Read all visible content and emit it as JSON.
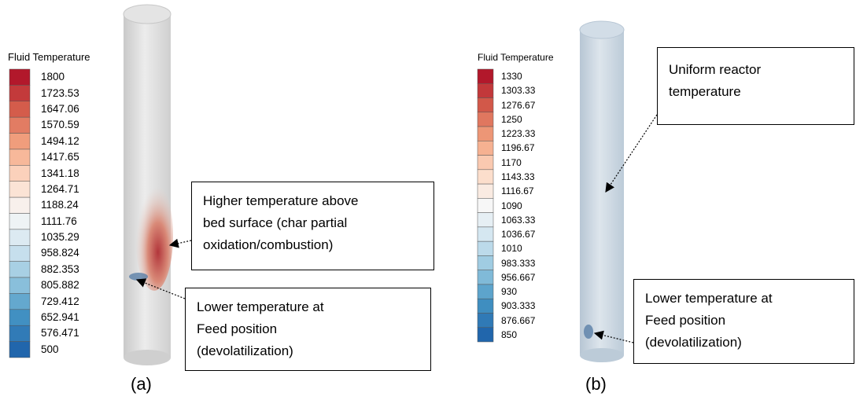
{
  "panels": [
    {
      "legend": {
        "title": "Fluid Temperature",
        "labels": [
          "1800",
          "1723.53",
          "1647.06",
          "1570.59",
          "1494.12",
          "1417.65",
          "1341.18",
          "1264.71",
          "1188.24",
          "1111.76",
          "1035.29",
          "958.824",
          "882.353",
          "805.882",
          "729.412",
          "652.941",
          "576.471",
          "500"
        ]
      },
      "callouts": [
        {
          "lines": [
            "Higher temperature above",
            "bed surface (char partial",
            "oxidation/combustion)"
          ]
        },
        {
          "lines": [
            "Lower temperature at",
            "Feed position",
            "(devolatilization)"
          ]
        }
      ],
      "caption": "(a)"
    },
    {
      "legend": {
        "title": "Fluid Temperature",
        "labels": [
          "1330",
          "1303.33",
          "1276.67",
          "1250",
          "1223.33",
          "1196.67",
          "1170",
          "1143.33",
          "1116.67",
          "1090",
          "1063.33",
          "1036.67",
          "1010",
          "983.333",
          "956.667",
          "930",
          "903.333",
          "876.667",
          "850"
        ]
      },
      "callouts": [
        {
          "lines": [
            "Uniform reactor",
            "temperature"
          ]
        },
        {
          "lines": [
            "Lower temperature at",
            "Feed position",
            "(devolatilization)"
          ]
        }
      ],
      "caption": "(b)"
    }
  ]
}
